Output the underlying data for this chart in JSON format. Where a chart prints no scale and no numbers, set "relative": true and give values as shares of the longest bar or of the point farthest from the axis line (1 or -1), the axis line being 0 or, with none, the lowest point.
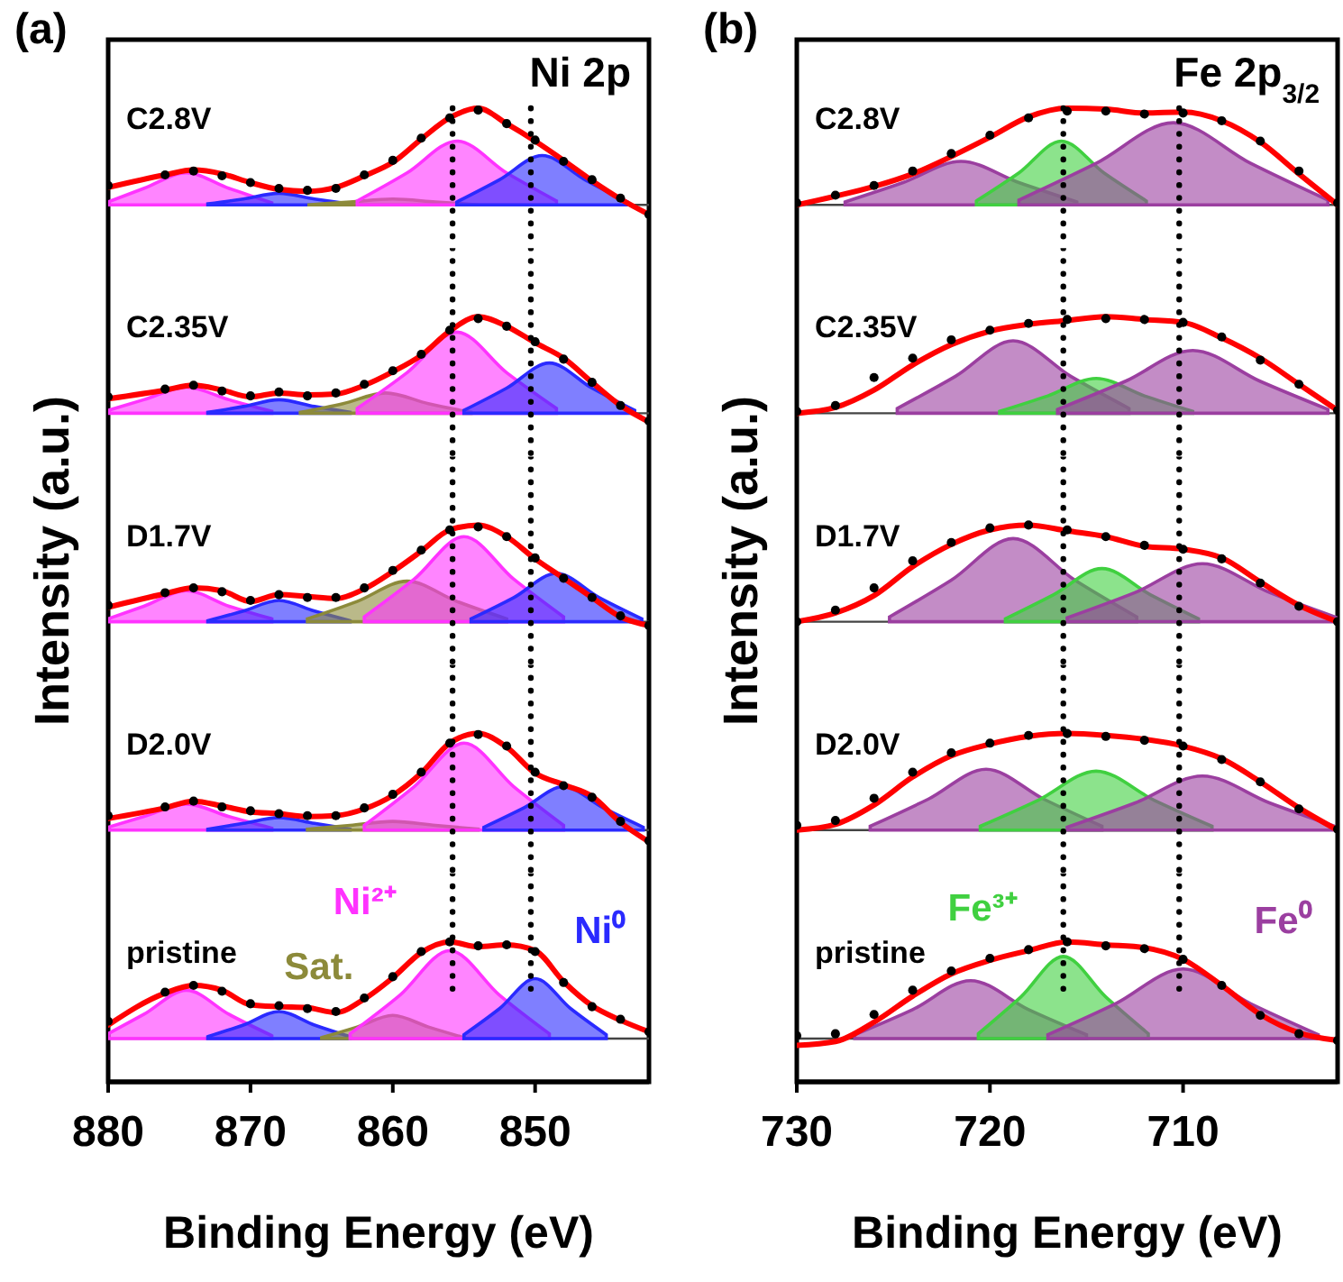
{
  "chart_data": [
    {
      "type": "area",
      "title": "C2.8V",
      "relative": true,
      "xlim": [
        880,
        842
      ],
      "tick_labels": false,
      "annotations": [
        "(a)",
        "Ni 2p"
      ],
      "x": [
        880,
        876,
        874,
        872,
        870,
        868,
        866,
        864,
        862,
        860,
        858,
        856,
        854,
        852,
        850,
        848,
        846,
        844,
        842
      ],
      "ref_lines": [
        {
          "axis": "x",
          "value": 855.8,
          "line_style": "dotted",
          "color": "#000000"
        },
        {
          "axis": "x",
          "value": 850.3,
          "line_style": "dotted",
          "color": "#000000"
        }
      ],
      "series": [
        {
          "color": "#ff33ff",
          "x": [
            880,
            877.5,
            874.5,
            871.5,
            868.5
          ],
          "values": [
            0.03,
            0.17,
            0.33,
            0.17,
            0.02
          ]
        },
        {
          "color": "#2a2aff",
          "x": [
            873,
            870.5,
            868,
            865.5,
            863
          ],
          "values": [
            0.01,
            0.06,
            0.12,
            0.06,
            0.01
          ]
        },
        {
          "color": "#8c8a3a",
          "x": [
            866,
            863,
            860,
            857,
            854
          ],
          "values": [
            0,
            0.03,
            0.06,
            0.03,
            0
          ]
        },
        {
          "color": "#ff33ff",
          "x": [
            862.5,
            859,
            855.5,
            852,
            848.5
          ],
          "values": [
            0.04,
            0.33,
            0.66,
            0.33,
            0.04
          ]
        },
        {
          "color": "#2a2aff",
          "x": [
            855.5,
            852.5,
            849.5,
            846.5,
            843.5
          ],
          "values": [
            0.03,
            0.26,
            0.51,
            0.26,
            0.03
          ]
        },
        {
          "type": "line",
          "color": "#ff0000",
          "values": [
            0.18,
            0.31,
            0.36,
            0.32,
            0.23,
            0.16,
            0.14,
            0.18,
            0.3,
            0.44,
            0.68,
            0.9,
            1.0,
            0.84,
            0.66,
            0.46,
            0.25,
            0.06,
            -0.1
          ]
        },
        {
          "type": "scatter",
          "marker": "circle",
          "color": "#000000",
          "values": [
            0.2,
            0.31,
            0.35,
            0.3,
            0.23,
            0.17,
            0.15,
            0.17,
            0.31,
            0.46,
            0.69,
            0.9,
            0.98,
            0.84,
            0.67,
            0.45,
            0.26,
            0.07,
            -0.1
          ]
        }
      ]
    },
    {
      "type": "area",
      "title": "C2.35V",
      "relative": true,
      "xlim": [
        880,
        842
      ],
      "tick_labels": false,
      "x": [
        880,
        876,
        874,
        872,
        870,
        868,
        866,
        864,
        862,
        860,
        858,
        856,
        854,
        852,
        850,
        848,
        846,
        844,
        842
      ],
      "ref_lines": [
        {
          "axis": "x",
          "value": 855.8,
          "line_style": "dotted",
          "color": "#000000"
        },
        {
          "axis": "x",
          "value": 850.3,
          "line_style": "dotted",
          "color": "#000000"
        }
      ],
      "series": [
        {
          "color": "#ff33ff",
          "x": [
            880,
            877.5,
            874.5,
            871.5,
            868.5
          ],
          "values": [
            0.03,
            0.14,
            0.27,
            0.14,
            0.02
          ]
        },
        {
          "color": "#2a2aff",
          "x": [
            873,
            870.5,
            868,
            865.5,
            863
          ],
          "values": [
            0.01,
            0.07,
            0.14,
            0.07,
            0.01
          ]
        },
        {
          "color": "#8c8a3a",
          "x": [
            866.5,
            863.5,
            860.5,
            857.5,
            854.5
          ],
          "values": [
            0.01,
            0.1,
            0.21,
            0.1,
            0.01
          ]
        },
        {
          "color": "#ff33ff",
          "x": [
            862.5,
            859,
            855.5,
            852,
            848.5
          ],
          "values": [
            0.05,
            0.42,
            0.84,
            0.42,
            0.05
          ]
        },
        {
          "color": "#2a2aff",
          "x": [
            855,
            852,
            849,
            846,
            843
          ],
          "values": [
            0.03,
            0.26,
            0.52,
            0.26,
            0.03
          ]
        },
        {
          "type": "line",
          "color": "#ff0000",
          "values": [
            0.15,
            0.24,
            0.29,
            0.24,
            0.17,
            0.21,
            0.19,
            0.2,
            0.29,
            0.43,
            0.6,
            0.85,
            1.0,
            0.9,
            0.73,
            0.57,
            0.32,
            0.08,
            -0.09
          ]
        },
        {
          "type": "scatter",
          "marker": "circle",
          "color": "#000000",
          "values": [
            0.17,
            0.25,
            0.29,
            0.23,
            0.18,
            0.22,
            0.18,
            0.21,
            0.3,
            0.44,
            0.61,
            0.86,
            0.98,
            0.9,
            0.74,
            0.56,
            0.32,
            0.08,
            -0.08
          ]
        }
      ]
    },
    {
      "type": "area",
      "title": "D1.7V",
      "relative": true,
      "xlim": [
        880,
        842
      ],
      "tick_labels": false,
      "x": [
        880,
        876,
        874,
        872,
        870,
        868,
        866,
        864,
        862,
        860,
        858,
        856,
        854,
        852,
        850,
        848,
        846,
        844,
        842
      ],
      "ref_lines": [
        {
          "axis": "x",
          "value": 855.8,
          "line_style": "dotted",
          "color": "#000000"
        },
        {
          "axis": "x",
          "value": 850.3,
          "line_style": "dotted",
          "color": "#000000"
        }
      ],
      "series": [
        {
          "color": "#ff33ff",
          "x": [
            880,
            877.5,
            874.5,
            871.5,
            868.5
          ],
          "values": [
            0.03,
            0.16,
            0.32,
            0.16,
            0.03
          ]
        },
        {
          "color": "#2a2aff",
          "x": [
            873,
            870.5,
            868,
            865.5,
            863
          ],
          "values": [
            0.01,
            0.11,
            0.22,
            0.11,
            0.01
          ]
        },
        {
          "color": "#8c8a3a",
          "x": [
            866,
            862.5,
            859,
            855.5,
            852
          ],
          "values": [
            0.03,
            0.21,
            0.42,
            0.21,
            0.03
          ]
        },
        {
          "color": "#ff33ff",
          "x": [
            862,
            858.5,
            855,
            851.5,
            848
          ],
          "values": [
            0.05,
            0.44,
            0.88,
            0.44,
            0.05
          ]
        },
        {
          "color": "#2a2aff",
          "x": [
            854.5,
            851.5,
            848.5,
            845.5,
            842.5
          ],
          "values": [
            0.03,
            0.25,
            0.5,
            0.25,
            0.03
          ]
        },
        {
          "type": "line",
          "color": "#ff0000",
          "values": [
            0.15,
            0.29,
            0.35,
            0.32,
            0.21,
            0.28,
            0.26,
            0.24,
            0.34,
            0.52,
            0.73,
            0.95,
            1.0,
            0.88,
            0.65,
            0.45,
            0.25,
            0.05,
            -0.04
          ]
        },
        {
          "type": "scatter",
          "marker": "circle",
          "color": "#000000",
          "values": [
            0.17,
            0.3,
            0.35,
            0.31,
            0.22,
            0.28,
            0.25,
            0.25,
            0.35,
            0.53,
            0.74,
            0.95,
            0.98,
            0.88,
            0.66,
            0.45,
            0.25,
            0.06,
            -0.04
          ]
        }
      ]
    },
    {
      "type": "area",
      "title": "D2.0V",
      "relative": true,
      "xlim": [
        880,
        842
      ],
      "tick_labels": false,
      "x": [
        880,
        876,
        874,
        872,
        870,
        868,
        866,
        864,
        862,
        860,
        858,
        856,
        854,
        852,
        850,
        848,
        846,
        844,
        842
      ],
      "ref_lines": [
        {
          "axis": "x",
          "value": 855.8,
          "line_style": "dotted",
          "color": "#000000"
        },
        {
          "axis": "x",
          "value": 850.3,
          "line_style": "dotted",
          "color": "#000000"
        }
      ],
      "series": [
        {
          "color": "#ff33ff",
          "x": [
            880,
            877.5,
            874.5,
            871.5,
            868.5
          ],
          "values": [
            0.03,
            0.14,
            0.27,
            0.14,
            0.02
          ]
        },
        {
          "color": "#2a2aff",
          "x": [
            873,
            870.5,
            868,
            865.5,
            863
          ],
          "values": [
            0.01,
            0.07,
            0.13,
            0.07,
            0.01
          ]
        },
        {
          "color": "#8c8a3a",
          "x": [
            866,
            863,
            860,
            857,
            854
          ],
          "values": [
            0.01,
            0.05,
            0.09,
            0.05,
            0.01
          ]
        },
        {
          "color": "#ff33ff",
          "x": [
            862,
            858.5,
            855,
            851.5,
            848
          ],
          "values": [
            0.05,
            0.45,
            0.9,
            0.45,
            0.05
          ]
        },
        {
          "color": "#2a2aff",
          "x": [
            853.6,
            850.8,
            848,
            845.2,
            842.4
          ],
          "values": [
            0.03,
            0.23,
            0.45,
            0.23,
            0.03
          ]
        },
        {
          "type": "line",
          "color": "#ff0000",
          "values": [
            0.12,
            0.23,
            0.3,
            0.25,
            0.19,
            0.17,
            0.14,
            0.15,
            0.22,
            0.36,
            0.59,
            0.9,
            1.0,
            0.86,
            0.59,
            0.47,
            0.35,
            0.08,
            -0.12
          ]
        },
        {
          "type": "scatter",
          "marker": "circle",
          "color": "#000000",
          "values": [
            0.15,
            0.24,
            0.3,
            0.24,
            0.2,
            0.17,
            0.15,
            0.15,
            0.23,
            0.37,
            0.6,
            0.9,
            0.99,
            0.87,
            0.6,
            0.46,
            0.34,
            0.09,
            -0.11
          ]
        }
      ]
    },
    {
      "type": "area",
      "title": "pristine",
      "xlabel": "Binding Energy (eV)",
      "ylabel": "Intensity (a.u.)",
      "relative": true,
      "xlim": [
        880,
        842
      ],
      "xticks": [
        880,
        870,
        860,
        850
      ],
      "x": [
        880,
        876,
        874,
        872,
        870,
        868,
        866,
        864,
        862,
        860,
        858,
        856,
        854,
        852,
        850,
        848,
        846,
        844,
        842
      ],
      "ref_lines": [
        {
          "axis": "x",
          "value": 855.8,
          "line_style": "dotted",
          "color": "#000000"
        },
        {
          "axis": "x",
          "value": 850.3,
          "line_style": "dotted",
          "color": "#000000"
        }
      ],
      "series": [
        {
          "color": "#ff33ff",
          "x": [
            880,
            877.5,
            874.5,
            871.5,
            868.5
          ],
          "values": [
            0.05,
            0.25,
            0.5,
            0.25,
            0.03
          ]
        },
        {
          "color": "#2a2aff",
          "x": [
            873,
            870.5,
            868,
            865.5,
            863
          ],
          "values": [
            0.02,
            0.14,
            0.28,
            0.14,
            0.02
          ]
        },
        {
          "name": "Sat.",
          "color": "#8c8a3a",
          "x": [
            865,
            862.5,
            860,
            857.5,
            855
          ],
          "values": [
            0.01,
            0.12,
            0.24,
            0.12,
            0.01
          ]
        },
        {
          "name": "Ni²⁺",
          "color": "#ff33ff",
          "x": [
            863,
            859.5,
            856,
            852.5,
            849
          ],
          "values": [
            0.05,
            0.45,
            0.91,
            0.45,
            0.05
          ]
        },
        {
          "name": "Ni⁰",
          "color": "#2a2aff",
          "x": [
            855,
            852.5,
            850,
            847.5,
            845
          ],
          "values": [
            0.04,
            0.31,
            0.62,
            0.31,
            0.04
          ]
        },
        {
          "type": "line",
          "color": "#ff0000",
          "values": [
            0.14,
            0.47,
            0.55,
            0.5,
            0.35,
            0.33,
            0.32,
            0.27,
            0.41,
            0.63,
            0.89,
            1.0,
            0.95,
            0.97,
            0.91,
            0.59,
            0.34,
            0.19,
            0.07
          ]
        },
        {
          "type": "scatter",
          "marker": "circle",
          "color": "#000000",
          "values": [
            0.18,
            0.48,
            0.55,
            0.49,
            0.36,
            0.34,
            0.31,
            0.28,
            0.42,
            0.64,
            0.9,
            1.0,
            0.96,
            0.97,
            0.9,
            0.58,
            0.33,
            0.2,
            0.07
          ]
        }
      ]
    },
    {
      "type": "area",
      "title": "C2.8V",
      "relative": true,
      "xlim": [
        730,
        702
      ],
      "tick_labels": false,
      "annotations": [
        "(b)",
        "Fe 2p$_{3/2}$"
      ],
      "x": [
        730,
        728,
        726,
        724,
        722,
        720,
        718,
        716,
        714,
        712,
        710,
        708,
        706,
        704,
        702
      ],
      "ref_lines": [
        {
          "axis": "x",
          "value": 716.2,
          "line_style": "dotted",
          "color": "#000000"
        },
        {
          "axis": "x",
          "value": 710.2,
          "line_style": "dotted",
          "color": "#000000"
        }
      ],
      "series": [
        {
          "color": "#9b3fa0",
          "x": [
            727.5,
            724.5,
            721.5,
            718.5,
            715.5
          ],
          "values": [
            0.03,
            0.23,
            0.45,
            0.23,
            0.03
          ]
        },
        {
          "color": "#40d040",
          "x": [
            720.7,
            718.5,
            716.3,
            714.1,
            711.9
          ],
          "values": [
            0.04,
            0.33,
            0.66,
            0.33,
            0.04
          ]
        },
        {
          "color": "#9b3fa0",
          "x": [
            718.5,
            714.5,
            710.5,
            706.5,
            702.5
          ],
          "values": [
            0.05,
            0.43,
            0.85,
            0.43,
            0.05
          ]
        },
        {
          "type": "line",
          "color": "#ff0000",
          "values": [
            0,
            0.09,
            0.19,
            0.32,
            0.5,
            0.7,
            0.91,
            1.0,
            0.99,
            0.95,
            0.96,
            0.87,
            0.65,
            0.32,
            0
          ]
        },
        {
          "type": "scatter",
          "marker": "circle",
          "color": "#000000",
          "values": [
            0.02,
            0.1,
            0.2,
            0.35,
            0.53,
            0.72,
            0.9,
            0.97,
            0.97,
            0.94,
            0.95,
            0.87,
            0.66,
            0.35,
            0.02
          ]
        }
      ]
    },
    {
      "type": "area",
      "title": "C2.35V",
      "relative": true,
      "xlim": [
        730,
        702
      ],
      "tick_labels": false,
      "x": [
        730,
        728,
        726,
        724,
        722,
        720,
        718,
        716,
        714,
        712,
        710,
        708,
        706,
        704,
        702
      ],
      "ref_lines": [
        {
          "axis": "x",
          "value": 716.2,
          "line_style": "dotted",
          "color": "#000000"
        },
        {
          "axis": "x",
          "value": 710.2,
          "line_style": "dotted",
          "color": "#000000"
        }
      ],
      "series": [
        {
          "color": "#9b3fa0",
          "x": [
            724.8,
            721.8,
            718.8,
            715.8,
            712.8
          ],
          "values": [
            0.05,
            0.38,
            0.75,
            0.38,
            0.05
          ]
        },
        {
          "color": "#40d040",
          "x": [
            719.5,
            717,
            714.5,
            712,
            709.5
          ],
          "values": [
            0.02,
            0.18,
            0.36,
            0.18,
            0.02
          ]
        },
        {
          "color": "#9b3fa0",
          "x": [
            716.5,
            713,
            709.5,
            706,
            702.5
          ],
          "values": [
            0.04,
            0.33,
            0.65,
            0.33,
            0.04
          ]
        },
        {
          "type": "line",
          "color": "#ff0000",
          "values": [
            0,
            0.06,
            0.24,
            0.5,
            0.71,
            0.85,
            0.92,
            0.96,
            1.0,
            0.97,
            0.94,
            0.78,
            0.57,
            0.3,
            0.03
          ]
        },
        {
          "type": "scatter",
          "marker": "circle",
          "color": "#000000",
          "values": [
            0.02,
            0.08,
            0.37,
            0.57,
            0.76,
            0.86,
            0.93,
            0.97,
            0.98,
            0.97,
            0.94,
            0.79,
            0.55,
            0.3,
            0.03
          ]
        }
      ]
    },
    {
      "type": "area",
      "title": "D1.7V",
      "relative": true,
      "xlim": [
        730,
        702
      ],
      "tick_labels": false,
      "x": [
        730,
        728,
        726,
        724,
        722,
        720,
        718,
        716,
        714,
        712,
        710,
        708,
        706,
        704,
        702
      ],
      "ref_lines": [
        {
          "axis": "x",
          "value": 716.2,
          "line_style": "dotted",
          "color": "#000000"
        },
        {
          "axis": "x",
          "value": 710.2,
          "line_style": "dotted",
          "color": "#000000"
        }
      ],
      "series": [
        {
          "color": "#9b3fa0",
          "x": [
            725.2,
            722,
            718.8,
            715.6,
            712.4
          ],
          "values": [
            0.05,
            0.43,
            0.86,
            0.43,
            0.05
          ]
        },
        {
          "color": "#40d040",
          "x": [
            719.2,
            716.7,
            714.2,
            711.7,
            709.2
          ],
          "values": [
            0.03,
            0.28,
            0.55,
            0.28,
            0.03
          ]
        },
        {
          "color": "#9b3fa0",
          "x": [
            716,
            712.5,
            709,
            705.5,
            702
          ],
          "values": [
            0.04,
            0.3,
            0.6,
            0.3,
            0.04
          ]
        },
        {
          "type": "line",
          "color": "#ff0000",
          "values": [
            0,
            0.09,
            0.27,
            0.57,
            0.8,
            0.95,
            1.0,
            0.94,
            0.88,
            0.78,
            0.75,
            0.66,
            0.41,
            0.17,
            0
          ]
        },
        {
          "type": "scatter",
          "marker": "circle",
          "color": "#000000",
          "values": [
            0,
            0.12,
            0.35,
            0.63,
            0.82,
            0.97,
            1.0,
            0.95,
            0.88,
            0.79,
            0.75,
            0.65,
            0.4,
            0.16,
            0
          ]
        }
      ]
    },
    {
      "type": "area",
      "title": "D2.0V",
      "relative": true,
      "xlim": [
        730,
        702
      ],
      "tick_labels": false,
      "x": [
        730,
        728,
        726,
        724,
        722,
        720,
        718,
        716,
        714,
        712,
        710,
        708,
        706,
        704,
        702
      ],
      "ref_lines": [
        {
          "axis": "x",
          "value": 716.2,
          "line_style": "dotted",
          "color": "#000000"
        },
        {
          "axis": "x",
          "value": 710.2,
          "line_style": "dotted",
          "color": "#000000"
        }
      ],
      "series": [
        {
          "color": "#9b3fa0",
          "x": [
            726.2,
            723.2,
            720.2,
            717.2,
            714.2
          ],
          "values": [
            0.04,
            0.32,
            0.63,
            0.32,
            0.04
          ]
        },
        {
          "color": "#40d040",
          "x": [
            720.5,
            717.5,
            714.5,
            711.5,
            708.5
          ],
          "values": [
            0.04,
            0.31,
            0.61,
            0.31,
            0.04
          ]
        },
        {
          "color": "#9b3fa0",
          "x": [
            716,
            712.5,
            709,
            705.5,
            702
          ],
          "values": [
            0.03,
            0.28,
            0.56,
            0.28,
            0.03
          ]
        },
        {
          "type": "line",
          "color": "#ff0000",
          "values": [
            0,
            0.06,
            0.26,
            0.55,
            0.77,
            0.89,
            0.97,
            1.0,
            0.98,
            0.94,
            0.87,
            0.74,
            0.5,
            0.23,
            0
          ]
        },
        {
          "type": "scatter",
          "marker": "circle",
          "color": "#000000",
          "values": [
            0.05,
            0.1,
            0.33,
            0.6,
            0.8,
            0.9,
            0.98,
            1.0,
            0.97,
            0.93,
            0.87,
            0.73,
            0.5,
            0.22,
            0.01
          ]
        }
      ]
    },
    {
      "type": "area",
      "title": "pristine",
      "xlabel": "Binding Energy (eV)",
      "ylabel": "Intensity (a.u.)",
      "relative": true,
      "xlim": [
        730,
        702
      ],
      "xticks": [
        730,
        720,
        710
      ],
      "x": [
        730,
        728,
        726,
        724,
        722,
        720,
        718,
        716,
        714,
        712,
        710,
        708,
        706,
        704,
        702
      ],
      "ref_lines": [
        {
          "axis": "x",
          "value": 716.2,
          "line_style": "dotted",
          "color": "#000000"
        },
        {
          "axis": "x",
          "value": 710.2,
          "line_style": "dotted",
          "color": "#000000"
        }
      ],
      "series": [
        {
          "color": "#9b3fa0",
          "x": [
            727,
            724,
            721,
            718,
            715
          ],
          "values": [
            0.04,
            0.3,
            0.6,
            0.3,
            0.04
          ]
        },
        {
          "name": "Fe³⁺",
          "color": "#40d040",
          "x": [
            720.6,
            718.4,
            716.2,
            714,
            711.8
          ],
          "values": [
            0.05,
            0.43,
            0.85,
            0.43,
            0.05
          ]
        },
        {
          "name": "Fe⁰",
          "color": "#9b3fa0",
          "x": [
            717,
            713.5,
            710,
            706.5,
            703
          ],
          "values": [
            0.04,
            0.36,
            0.72,
            0.36,
            0.04
          ]
        },
        {
          "type": "line",
          "color": "#ff0000",
          "values": [
            -0.07,
            -0.03,
            0.17,
            0.44,
            0.67,
            0.81,
            0.91,
            1.0,
            0.97,
            0.94,
            0.82,
            0.55,
            0.25,
            0.06,
            -0.02
          ]
        },
        {
          "type": "scatter",
          "marker": "circle",
          "color": "#000000",
          "values": [
            0.03,
            0.05,
            0.25,
            0.5,
            0.7,
            0.83,
            0.92,
            1.0,
            0.96,
            0.93,
            0.82,
            0.55,
            0.24,
            0.05,
            -0.02
          ]
        }
      ]
    }
  ]
}
